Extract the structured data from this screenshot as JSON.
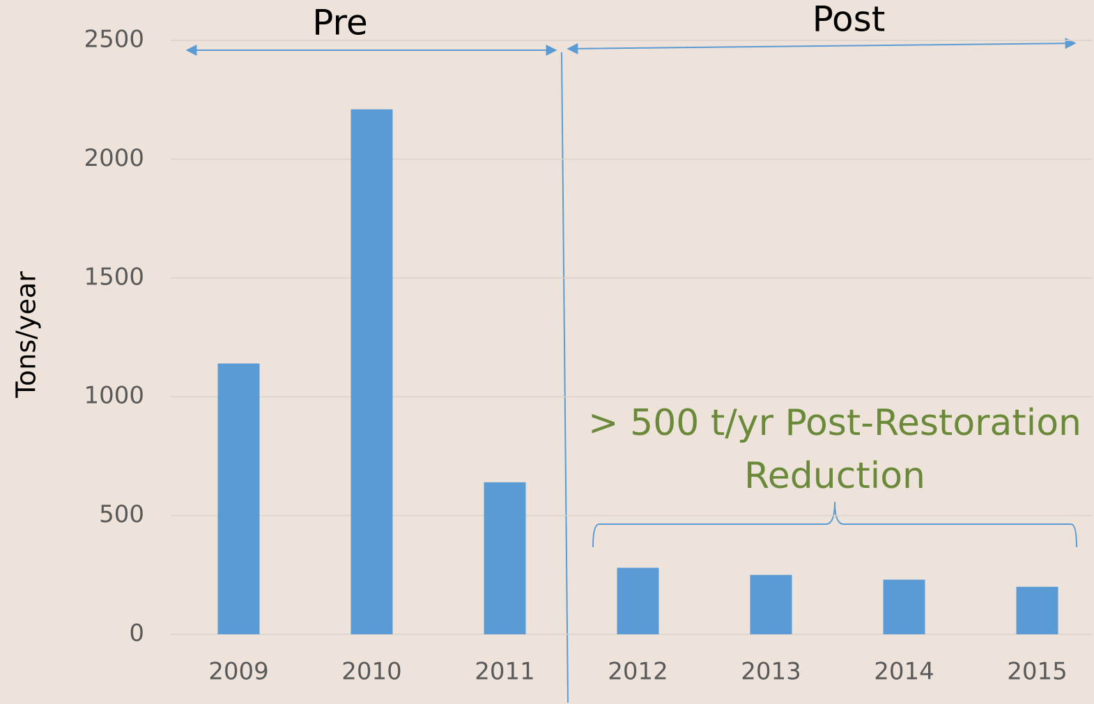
{
  "chart_data": {
    "type": "bar",
    "y_label": "Tons/year",
    "categories": [
      "2009",
      "2010",
      "2011",
      "2012",
      "2013",
      "2014",
      "2015"
    ],
    "values": [
      1140,
      2210,
      640,
      280,
      250,
      230,
      200
    ],
    "color": "#5b9bd5",
    "ylim": [
      0,
      2500
    ],
    "yticks": [
      0,
      500,
      1000,
      1500,
      2000,
      2500
    ],
    "grid": true,
    "annotations": [
      "Pre",
      "Post",
      "> 500 t/yr Post-Restoration",
      "Reduction"
    ]
  }
}
